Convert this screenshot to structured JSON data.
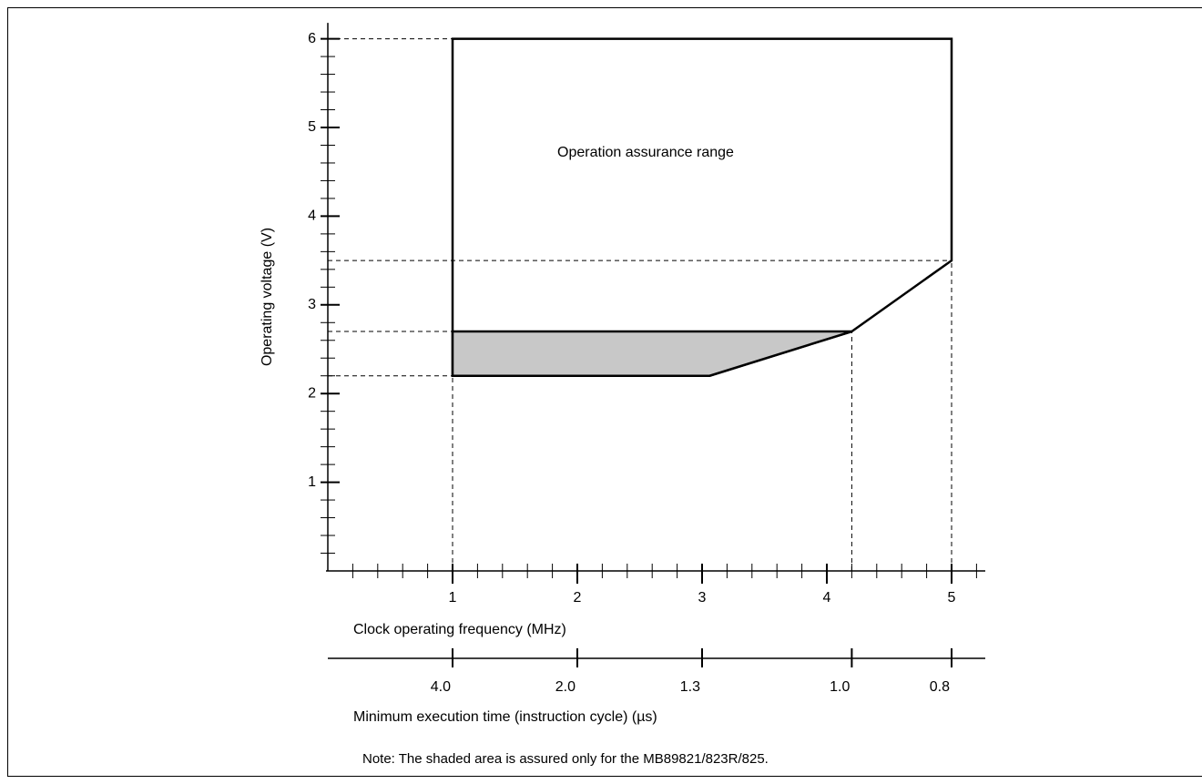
{
  "chart_data": {
    "type": "region",
    "ylabel": "Operating voltage (V)",
    "xlabel": "Clock operating frequency (MHz)",
    "x2label": "Minimum execution time (instruction cycle) (µs)",
    "annotation": "Operation assurance range",
    "note": "Note: The shaded area is assured only for the MB89821/823R/825.",
    "xlim": [
      0,
      5.27
    ],
    "ylim": [
      0,
      6.18
    ],
    "xticks": [
      1,
      2,
      3,
      4,
      5
    ],
    "yticks": [
      1,
      2,
      3,
      4,
      5,
      6
    ],
    "x2ticks": [
      {
        "value": 1,
        "label": "4.0"
      },
      {
        "value": 2,
        "label": "2.0"
      },
      {
        "value": 3,
        "label": "1.3"
      },
      {
        "value": 4.2,
        "label": "1.0"
      },
      {
        "value": 5,
        "label": "0.8"
      }
    ],
    "minor_tick_step": 0.2,
    "series": [
      {
        "color": "#000000",
        "fill": "none",
        "x": [
          1,
          5,
          5,
          4.2,
          3.06,
          1
        ],
        "values": [
          6,
          6,
          3.5,
          2.7,
          2.2,
          2.2
        ]
      },
      {
        "color": "#000000",
        "fill": "#c8c8c8",
        "x": [
          1,
          4.2,
          3.06,
          1
        ],
        "values": [
          2.7,
          2.7,
          2.2,
          2.2
        ]
      }
    ]
  }
}
